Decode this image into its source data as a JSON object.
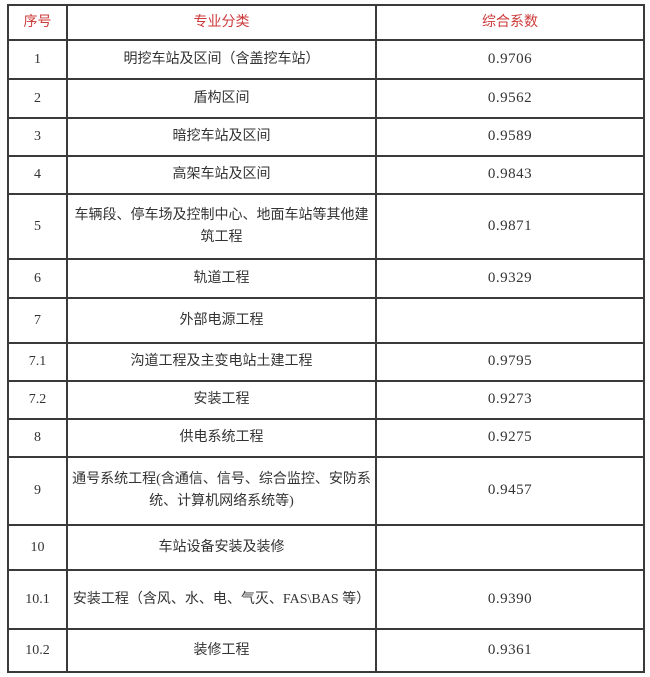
{
  "theme": {
    "header_text_color": "#cd3a3a",
    "body_text_color": "#333333",
    "border_color": "#3a3a3a",
    "page_bg": "#fdfdfd"
  },
  "table": {
    "headers": {
      "no": "序号",
      "category": "专业分类",
      "coefficient": "综合系数"
    },
    "rows": [
      {
        "no": "1",
        "category": "明挖车站及区间（含盖挖车站）",
        "coefficient": "0.9706"
      },
      {
        "no": "2",
        "category": "盾构区间",
        "coefficient": "0.9562"
      },
      {
        "no": "3",
        "category": "暗挖车站及区间",
        "coefficient": "0.9589"
      },
      {
        "no": "4",
        "category": "高架车站及区间",
        "coefficient": "0.9843"
      },
      {
        "no": "5",
        "category": "车辆段、停车场及控制中心、地面车站等其他建筑工程",
        "coefficient": "0.9871"
      },
      {
        "no": "6",
        "category": "轨道工程",
        "coefficient": "0.9329"
      },
      {
        "no": "7",
        "category": "外部电源工程",
        "coefficient": ""
      },
      {
        "no": "7.1",
        "category": "沟道工程及主变电站土建工程",
        "coefficient": "0.9795"
      },
      {
        "no": "7.2",
        "category": "安装工程",
        "coefficient": "0.9273"
      },
      {
        "no": "8",
        "category": "供电系统工程",
        "coefficient": "0.9275"
      },
      {
        "no": "9",
        "category": "通号系统工程(含通信、信号、综合监控、安防系统、计算机网络系统等)",
        "coefficient": "0.9457"
      },
      {
        "no": "10",
        "category": "车站设备安装及装修",
        "coefficient": ""
      },
      {
        "no": "10.1",
        "category": "安装工程（含风、水、电、气灭、FAS\\BAS 等）",
        "coefficient": "0.9390"
      },
      {
        "no": "10.2",
        "category": "装修工程",
        "coefficient": "0.9361"
      }
    ]
  }
}
